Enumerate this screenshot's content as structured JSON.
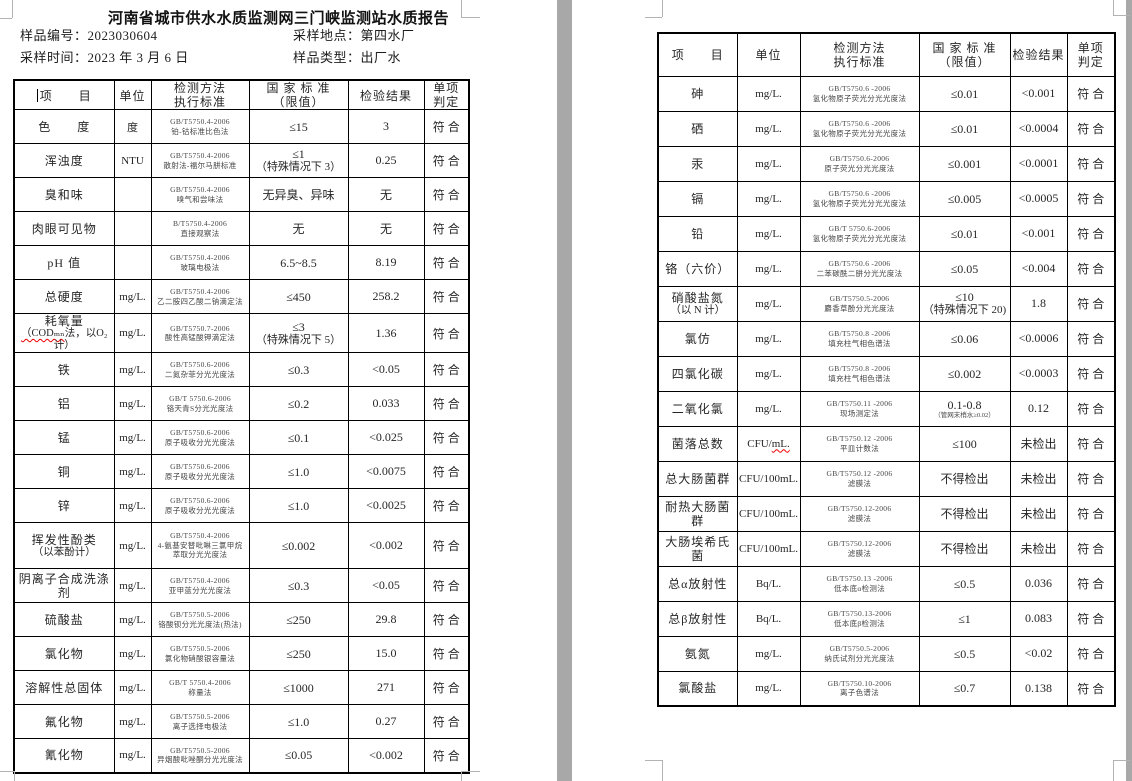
{
  "page1": {
    "title": "河南省城市供水水质监测网三门峡监测站水质报告",
    "info": {
      "sample_no_label": "样品编号：",
      "sample_no": "2023030604",
      "location_label": "采样地点：",
      "location": "第四水厂",
      "time_label": "采样时间：",
      "time": "2023 年 3 月 6 日",
      "type_label": "样品类型：",
      "type": "出厂水"
    },
    "rows": [
      {
        "item": "色　　度",
        "unit": "度",
        "m1": "GB/T5750.4-2006",
        "m2": "铂-钴标准比色法",
        "limit": "≤15",
        "result": "3",
        "verdict": "符合"
      },
      {
        "item": "浑浊度",
        "unit": "NTU",
        "m1": "GB/T5750.4-2006",
        "m2": "散射法-福尔马肼标准",
        "limit": "≤1",
        "limit2": "（特殊情况下 3）",
        "result": "0.25",
        "verdict": "符合"
      },
      {
        "item": "臭和味",
        "unit": "",
        "m1": "GB/T5750.4-2006",
        "m2": "嗅气和尝味法",
        "limit": "无异臭、异味",
        "result": "无",
        "verdict": "符合"
      },
      {
        "item": "肉眼可见物",
        "unit": "",
        "m1": "B/T5750.4-2006",
        "m2": "直接观察法",
        "limit": "无",
        "result": "无",
        "verdict": "符合"
      },
      {
        "item": "pH 值",
        "unit": "",
        "m1": "GB/T5750.4-2006",
        "m2": "玻璃电极法",
        "limit": "6.5~8.5",
        "result": "8.19",
        "verdict": "符合"
      },
      {
        "item": "总硬度",
        "unit": "mg/L.",
        "m1": "GB/T5750.4-2006",
        "m2": "乙二胺四乙酸二钠滴定法",
        "limit": "≤450",
        "result": "258.2",
        "verdict": "符合"
      },
      {
        "item": "耗氧量",
        "item2": "（CODₘₙ法，以O₂计）",
        "wavyItem2": 6,
        "unit": "mg/L.",
        "m1": "GB/T5750.7-2006",
        "m2": "酸性高锰酸钾滴定法",
        "limit": "≤3",
        "limit2": "（特殊情况下 5）",
        "result": "1.36",
        "verdict": "符合"
      },
      {
        "item": "铁",
        "unit": "mg/L.",
        "m1": "GB/T5750.6-2006",
        "m2": "二氮杂菲分光光度法",
        "limit": "≤0.3",
        "result": "<0.05",
        "verdict": "符合"
      },
      {
        "item": "铝",
        "unit": "mg/L.",
        "m1": "GB/T 5750.6-2006",
        "m2": "铬天青S分光光度法",
        "limit": "≤0.2",
        "result": "0.033",
        "verdict": "符合"
      },
      {
        "item": "锰",
        "unit": "mg/L.",
        "m1": "GB/T5750.6-2006",
        "m2": "原子吸收分光光度法",
        "limit": "≤0.1",
        "result": "<0.025",
        "verdict": "符合"
      },
      {
        "item": "铜",
        "unit": "mg/L.",
        "m1": "GB/T5750.6-2006",
        "m2": "原子吸收分光光度法",
        "limit": "≤1.0",
        "result": "<0.0075",
        "verdict": "符合"
      },
      {
        "item": "锌",
        "unit": "mg/L.",
        "m1": "GB/T5750.6-2006",
        "m2": "原子吸收分光光度法",
        "limit": "≤1.0",
        "result": "<0.0025",
        "verdict": "符合"
      },
      {
        "item": "挥发性酚类",
        "item2": "（以苯酚计）",
        "unit": "mg/L.",
        "m1": "GB/T5750.4-2006",
        "m2": "4-氨基安替吡啉三氯甲烷",
        "m3": "萃取分光光度法",
        "limit": "≤0.002",
        "result": "<0.002",
        "verdict": "符合",
        "tall": true
      },
      {
        "item": "阴离子合成洗涤剂",
        "unit": "mg/L.",
        "m1": "GB/T5750.4-2006",
        "m2": "亚甲蓝分光光度法",
        "limit": "≤0.3",
        "result": "<0.05",
        "verdict": "符合"
      },
      {
        "item": "硫酸盐",
        "unit": "mg/L.",
        "m1": "GB/T5750.5-2006",
        "m2": "铬酸钡分光光度法(热法)",
        "limit": "≤250",
        "result": "29.8",
        "verdict": "符合"
      },
      {
        "item": "氯化物",
        "unit": "mg/L.",
        "m1": "GB/T5750.5-2006",
        "m2": "氯化物硝酸银容量法",
        "limit": "≤250",
        "result": "15.0",
        "verdict": "符合"
      },
      {
        "item": "溶解性总固体",
        "unit": "mg/L.",
        "m1": "GB/T 5750.4-2006",
        "m2": "称量法",
        "limit": "≤1000",
        "result": "271",
        "verdict": "符合"
      },
      {
        "item": "氟化物",
        "unit": "mg/L.",
        "m1": "GB/T5750.5-2006",
        "m2": "离子选择电极法",
        "limit": "≤1.0",
        "result": "0.27",
        "verdict": "符合"
      },
      {
        "item": "氰化物",
        "unit": "mg/L.",
        "m1": "GB/T5750.5-2006",
        "m2": "异烟酸吡唑酮分光光度法",
        "limit": "≤0.05",
        "result": "<0.002",
        "verdict": "符合"
      }
    ]
  },
  "page2": {
    "rows": [
      {
        "item": "砷",
        "unit": "mg/L.",
        "m1": "GB/T5750.6 -2006",
        "m2": "氢化物原子荧光分光光度法",
        "limit": "≤0.01",
        "result": "<0.001",
        "verdict": "符合"
      },
      {
        "item": "硒",
        "unit": "mg/L.",
        "m1": "GB/T5750.6 -2006",
        "m2": "氢化物原子荧光分光光度法",
        "limit": "≤0.01",
        "result": "<0.0004",
        "verdict": "符合"
      },
      {
        "item": "汞",
        "unit": "mg/L.",
        "m1": "GB/T5750.6-2006",
        "m2": "原子荧光分光光度法",
        "limit": "≤0.001",
        "result": "<0.0001",
        "verdict": "符合"
      },
      {
        "item": "镉",
        "unit": "mg/L.",
        "m1": "GB/T5750.6 -2006",
        "m2": "氢化物原子荧光分光光度法",
        "limit": "≤0.005",
        "result": "<0.0005",
        "verdict": "符合"
      },
      {
        "item": "铅",
        "unit": "mg/L.",
        "m1": "GB/T 5750.6-2006",
        "m2": "氢化物原子荧光分光光度法",
        "limit": "≤0.01",
        "result": "<0.001",
        "verdict": "符合"
      },
      {
        "item": "铬（六价）",
        "unit": "mg/L.",
        "m1": "GB/T5750.6 -2006",
        "m2": "二苯碳酰二肼分光光度法",
        "limit": "≤0.05",
        "result": "<0.004",
        "verdict": "符合"
      },
      {
        "item": "硝酸盐氮",
        "item2": "（以 N 计）",
        "unit": "mg/L.",
        "m1": "GB/T5750.5-2006",
        "m2": "麝香草酚分光光度法",
        "limit": "≤10",
        "limit2": "（特殊情况下 20)",
        "result": "1.8",
        "verdict": "符合"
      },
      {
        "item": "氯仿",
        "unit": "mg/L.",
        "m1": "GB/T5750.8 -2006",
        "m2": "填充柱气相色谱法",
        "limit": "≤0.06",
        "result": "<0.0006",
        "verdict": "符合"
      },
      {
        "item": "四氯化碳",
        "unit": "mg/L.",
        "m1": "GB/T5750.8 -2006",
        "m2": "填充柱气相色谱法",
        "limit": "≤0.002",
        "result": "<0.0003",
        "verdict": "符合"
      },
      {
        "item": "二氧化氯",
        "unit": "mg/L.",
        "m1": "GB/T5750.11 -2006",
        "m2": "现场测定法",
        "limit": "0.1-0.8",
        "note": "（管网末梢水≥0.02）",
        "result": "0.12",
        "verdict": "符合"
      },
      {
        "item": "菌落总数",
        "unit": "CFU/mL.",
        "wavyUnit": 3,
        "m1": "GB/T5750.12 -2006",
        "m2": "平皿计数法",
        "limit": "≤100",
        "result": "未检出",
        "verdict": "符合"
      },
      {
        "item": "总大肠菌群",
        "unit": "CFU/100mL.",
        "m1": "GB/T5750.12 -2006",
        "m2": "滤膜法",
        "limit": "不得检出",
        "result": "未检出",
        "verdict": "符合"
      },
      {
        "item": "耐热大肠菌群",
        "unit": "CFU/100mL.",
        "m1": "GB/T5750.12-2006",
        "m2": "滤膜法",
        "limit": "不得检出",
        "result": "未检出",
        "verdict": "符合"
      },
      {
        "item": "大肠埃希氏菌",
        "unit": "CFU/100mL.",
        "m1": "GB/T5750.12-2006",
        "m2": "滤膜法",
        "limit": "不得检出",
        "result": "未检出",
        "verdict": "符合"
      },
      {
        "item": "总α放射性",
        "unit": "Bq/L.",
        "m1": "GB/T5750.13 -2006",
        "m2": "低本底α检测法",
        "limit": "≤0.5",
        "result": "0.036",
        "verdict": "符合"
      },
      {
        "item": "总β放射性",
        "unit": "Bq/L.",
        "m1": "GB/T5750.13-2006",
        "m2": "低本底β检测法",
        "limit": "≤1",
        "result": "0.083",
        "verdict": "符合"
      },
      {
        "item": "氨氮",
        "unit": "mg/L.",
        "m1": "GB/T5750.5-2006",
        "m2": "纳氏试剂分光光度法",
        "limit": "≤0.5",
        "result": "<0.02",
        "verdict": "符合"
      },
      {
        "item": "氯酸盐",
        "unit": "mg/L.",
        "m1": "GB/T5750.10-2006",
        "m2": "离子色谱法",
        "limit": "≤0.7",
        "result": "0.138",
        "verdict": "符合"
      }
    ]
  },
  "table_head": {
    "item": "项　　目",
    "unit": "单位",
    "method1": "检测方法",
    "method2": "执行标准",
    "std1": "国 家 标 准",
    "std2": "（限值）",
    "result": "检验结果",
    "verdict1": "单项",
    "verdict2": "判定"
  },
  "colors": {
    "canvas_bg": "#a8a8a8",
    "page_bg": "#ffffff",
    "table_border": "#000000",
    "body_text": "#262626",
    "method_text": "#454545",
    "spellcheck_squiggle": "#ee0000",
    "crop_mark": "#b3b3b3"
  }
}
